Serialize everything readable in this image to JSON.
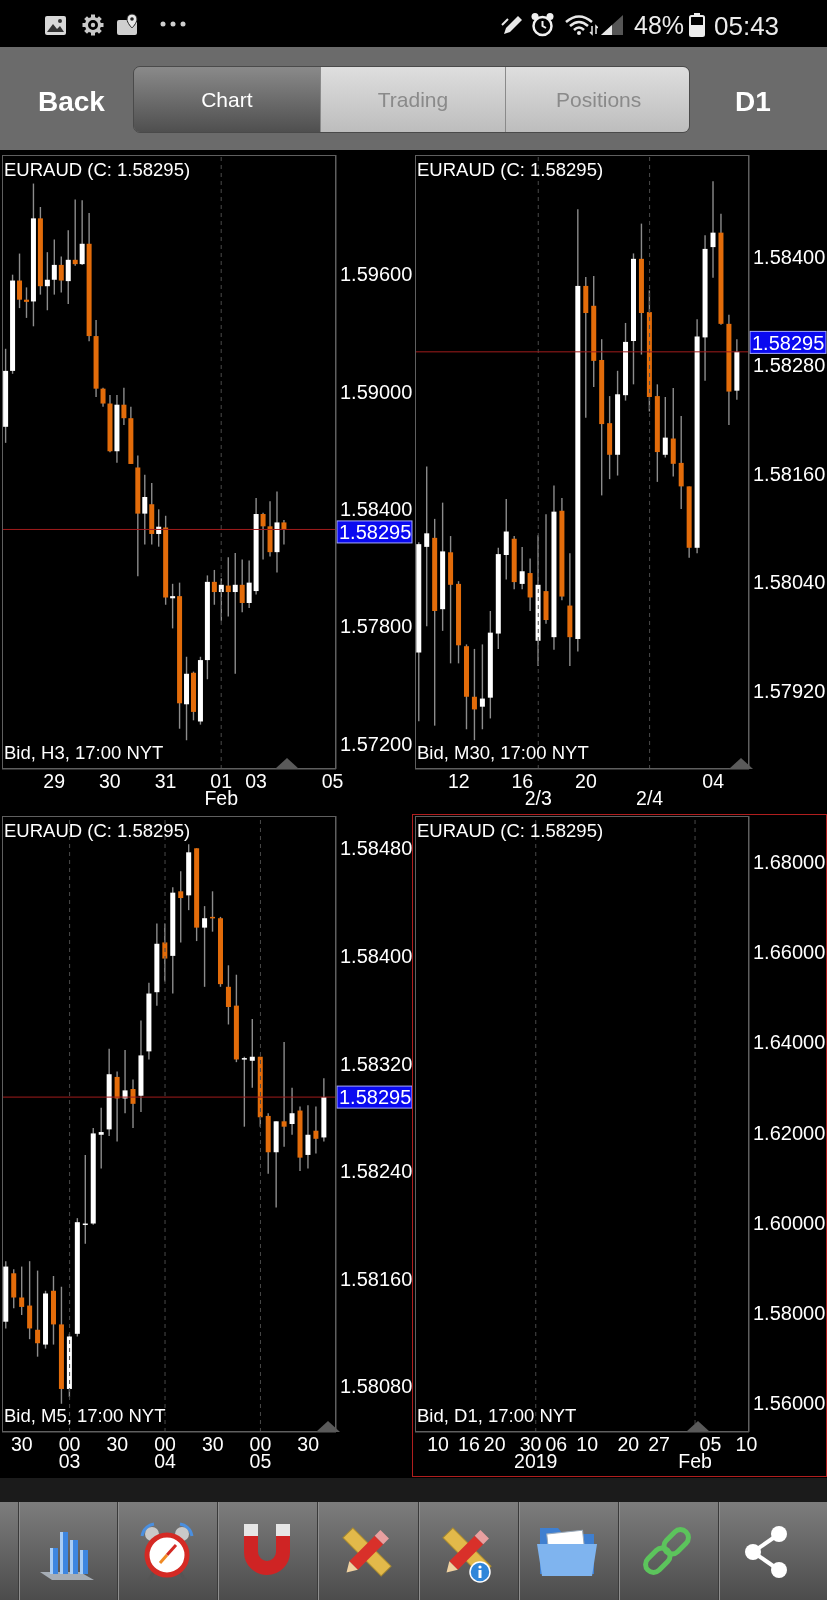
{
  "chart_data": [
    {
      "type": "other",
      "annotations": [
        "48%",
        "05:43",
        "Back",
        "Chart",
        "Trading",
        "Positions",
        "D1"
      ]
    },
    {
      "type": "candlestick",
      "title": "EURAUD (C: 1.58295)",
      "annotations": [
        "Bid, H3, 17:00 NYT"
      ],
      "grid": "x",
      "categories": [
        null,
        null,
        null,
        null,
        null,
        null,
        null,
        "29",
        null,
        null,
        null,
        null,
        null,
        null,
        null,
        "30",
        null,
        null,
        null,
        null,
        null,
        null,
        null,
        "31",
        null,
        null,
        null,
        null,
        null,
        null,
        null,
        "01\nFeb",
        null,
        null,
        null,
        null,
        "03",
        null,
        null,
        null,
        null,
        null,
        null,
        null,
        null,
        null,
        null,
        "05"
      ],
      "ohlc": [
        [
          1.5882,
          1.59219,
          1.58738,
          1.59106
        ],
        [
          1.59106,
          1.59598,
          1.59091,
          1.59568
        ],
        [
          1.59568,
          1.59706,
          1.59427,
          1.5947
        ],
        [
          1.5947,
          1.59533,
          1.59377,
          1.59459
        ],
        [
          1.59461,
          1.60064,
          1.59334,
          1.59886
        ],
        [
          1.59886,
          1.59944,
          1.59496,
          1.59539
        ],
        [
          1.59539,
          1.59713,
          1.59416,
          1.59572
        ],
        [
          1.59572,
          1.59778,
          1.59496,
          1.59648
        ],
        [
          1.59648,
          1.59691,
          1.59507,
          1.59568
        ],
        [
          1.59565,
          1.59825,
          1.59448,
          1.59674
        ],
        [
          1.59674,
          1.59983,
          1.59643,
          1.59652
        ],
        [
          1.59652,
          1.59979,
          1.59648,
          1.59756
        ],
        [
          1.59756,
          1.59914,
          1.59258,
          1.59284
        ],
        [
          1.59284,
          1.59366,
          1.58972,
          1.59015
        ],
        [
          1.59015,
          1.5902,
          1.58922,
          1.58939
        ],
        [
          1.58939,
          1.58983,
          1.5869,
          1.58695
        ],
        [
          1.58695,
          1.58983,
          1.58636,
          1.58933
        ],
        [
          1.58933,
          1.5902,
          1.58829,
          1.58864
        ],
        [
          1.58864,
          1.58922,
          1.5863,
          1.5863
        ],
        [
          1.58612,
          1.58673,
          1.58056,
          1.58376
        ],
        [
          1.58376,
          1.58575,
          1.58218,
          1.58461
        ],
        [
          1.58424,
          1.58532,
          1.58218,
          1.58272
        ],
        [
          1.58272,
          1.58398,
          1.58207,
          1.58309
        ],
        [
          1.58305,
          1.58365,
          1.5791,
          1.57947
        ],
        [
          1.57943,
          1.58017,
          1.57789,
          1.57954
        ],
        [
          1.57954,
          1.58023,
          1.57276,
          1.57406
        ],
        [
          1.57401,
          1.57644,
          1.57217,
          1.57557
        ],
        [
          1.57562,
          1.57568,
          1.57319,
          1.57362
        ],
        [
          1.57313,
          1.57644,
          1.57297,
          1.57627
        ],
        [
          1.57627,
          1.5806,
          1.57529,
          1.58027
        ],
        [
          1.58027,
          1.58088,
          1.5791,
          1.57975
        ],
        [
          1.57975,
          1.58045,
          1.57828,
          1.58012
        ],
        [
          1.58008,
          1.58153,
          1.5785,
          1.57975
        ],
        [
          1.57975,
          1.58175,
          1.57557,
          1.58012
        ],
        [
          1.58012,
          1.58142,
          1.57871,
          1.57919
        ],
        [
          1.57919,
          1.58136,
          1.57893,
          1.58023
        ],
        [
          1.5798,
          1.58456,
          1.57962,
          1.58374
        ],
        [
          1.58374,
          1.5838,
          1.58142,
          1.58311
        ],
        [
          1.58311,
          1.58439,
          1.58157,
          1.58179
        ],
        [
          1.58179,
          1.58489,
          1.58075,
          1.58331
        ],
        [
          1.58331,
          1.58344,
          1.58218,
          1.58295
        ],
        null,
        null,
        null,
        null,
        null,
        null,
        null
      ],
      "colors": [
        "#ffffff",
        "#ffffff",
        "#e36c0a",
        "#e36c0a",
        "#ffffff",
        "#e36c0a",
        "#ffffff",
        "#ffffff",
        "#e36c0a",
        "#ffffff",
        "#e36c0a",
        "#ffffff",
        "#e36c0a",
        "#e36c0a",
        "#e36c0a",
        "#e36c0a",
        "#ffffff",
        "#e36c0a",
        "#e36c0a",
        "#e36c0a",
        "#ffffff",
        "#e36c0a",
        "#ffffff",
        "#e36c0a",
        "#ffffff",
        "#e36c0a",
        "#ffffff",
        "#e36c0a",
        "#ffffff",
        "#ffffff",
        "#e36c0a",
        "#ffffff",
        "#e36c0a",
        "#ffffff",
        "#e36c0a",
        "#ffffff",
        "#ffffff",
        "#e36c0a",
        "#e36c0a",
        "#ffffff",
        "#e36c0a",
        null,
        null,
        null,
        null,
        null,
        null,
        null
      ],
      "ylim": [
        1.5707,
        1.6021
      ],
      "yticks": [
        {
          "value": 1.572,
          "label": "1.57200"
        },
        {
          "value": 1.578,
          "label": "1.57800"
        },
        {
          "value": 1.584,
          "label": "1.58400"
        },
        {
          "value": 1.59,
          "label": "1.59000"
        },
        {
          "value": 1.596,
          "label": "1.59600"
        }
      ],
      "ref_lines": [
        {
          "axis": "y",
          "value": 1.58295,
          "label": "1.58295",
          "color": "#a01c1c"
        }
      ]
    },
    {
      "type": "candlestick",
      "title": "EURAUD (C: 1.58295)",
      "annotations": [
        "Bid, M30, 17:00 NYT"
      ],
      "grid": "x",
      "categories": [
        null,
        null,
        null,
        null,
        null,
        "12",
        null,
        null,
        null,
        null,
        null,
        null,
        null,
        "16",
        null,
        "\n2/3",
        null,
        null,
        null,
        null,
        null,
        "20",
        null,
        null,
        null,
        null,
        null,
        null,
        null,
        "\n2/4",
        null,
        null,
        null,
        null,
        null,
        null,
        null,
        "04",
        null,
        null,
        null,
        null
      ],
      "ohlc": [
        [
          1.57962,
          1.58084,
          1.57886,
          1.58082
        ],
        [
          1.58079,
          1.58168,
          1.57991,
          1.58094
        ],
        [
          1.58089,
          1.5811,
          1.57881,
          1.58008
        ],
        [
          1.5801,
          1.58128,
          1.57986,
          1.58074
        ],
        [
          1.58073,
          1.58091,
          1.5795,
          1.58037
        ],
        [
          1.58038,
          1.58041,
          1.5795,
          1.5797
        ],
        [
          1.57969,
          1.57971,
          1.57877,
          1.57913
        ],
        [
          1.57913,
          1.57966,
          1.57865,
          1.57899
        ],
        [
          1.57902,
          1.57971,
          1.57877,
          1.57911
        ],
        [
          1.57912,
          1.58008,
          1.57889,
          1.57984
        ],
        [
          1.57983,
          1.58078,
          1.57966,
          1.58071
        ],
        [
          1.5807,
          1.58132,
          1.58043,
          1.58096
        ],
        [
          1.58088,
          1.58091,
          1.58032,
          1.5804
        ],
        [
          1.58038,
          1.58079,
          1.58032,
          1.58052
        ],
        [
          1.5805,
          1.58066,
          1.58008,
          1.58023
        ],
        [
          1.57975,
          1.58092,
          1.57947,
          1.58037
        ],
        [
          1.5803,
          1.58115,
          1.57994,
          1.57998
        ],
        [
          1.57979,
          1.58147,
          1.57965,
          1.58118
        ],
        [
          1.58119,
          1.58133,
          1.5802,
          1.58024
        ],
        [
          1.58014,
          1.58072,
          1.57947,
          1.57979
        ],
        [
          1.57977,
          1.58453,
          1.57963,
          1.58368
        ],
        [
          1.58368,
          1.58378,
          1.58222,
          1.58338
        ],
        [
          1.58346,
          1.58379,
          1.58256,
          1.58285
        ],
        [
          1.58286,
          1.58309,
          1.58136,
          1.58215
        ],
        [
          1.58216,
          1.58246,
          1.58154,
          1.58181
        ],
        [
          1.58181,
          1.58274,
          1.58158,
          1.58248
        ],
        [
          1.58247,
          1.58327,
          1.58241,
          1.58306
        ],
        [
          1.58307,
          1.58404,
          1.58259,
          1.58398
        ],
        [
          1.58398,
          1.58437,
          1.58292,
          1.58338
        ],
        [
          1.58339,
          1.58363,
          1.58229,
          1.58245
        ],
        [
          1.58246,
          1.58259,
          1.58151,
          1.58184
        ],
        [
          1.58181,
          1.58245,
          1.58178,
          1.582
        ],
        [
          1.58199,
          1.58255,
          1.58157,
          1.58171
        ],
        [
          1.58172,
          1.58224,
          1.58121,
          1.58146
        ],
        [
          1.58146,
          1.58146,
          1.58067,
          1.58078
        ],
        [
          1.58078,
          1.58331,
          1.58072,
          1.58312
        ],
        [
          1.58311,
          1.58424,
          1.58263,
          1.58409
        ],
        [
          1.58411,
          1.58484,
          1.58377,
          1.58427
        ],
        [
          1.58427,
          1.58448,
          1.58325,
          1.58326
        ],
        [
          1.58326,
          1.58336,
          1.58214,
          1.58251
        ],
        [
          1.58252,
          1.58309,
          1.58242,
          1.58295
        ],
        null
      ],
      "colors": [
        "#ffffff",
        "#ffffff",
        "#e36c0a",
        "#ffffff",
        "#e36c0a",
        "#e36c0a",
        "#e36c0a",
        "#e36c0a",
        "#ffffff",
        "#ffffff",
        "#ffffff",
        "#ffffff",
        "#e36c0a",
        "#ffffff",
        "#e36c0a",
        "#ffffff",
        "#e36c0a",
        "#ffffff",
        "#e36c0a",
        "#e36c0a",
        "#ffffff",
        "#e36c0a",
        "#e36c0a",
        "#e36c0a",
        "#e36c0a",
        "#ffffff",
        "#ffffff",
        "#ffffff",
        "#e36c0a",
        "#e36c0a",
        "#e36c0a",
        "#ffffff",
        "#e36c0a",
        "#e36c0a",
        "#e36c0a",
        "#ffffff",
        "#ffffff",
        "#ffffff",
        "#e36c0a",
        "#e36c0a",
        "#ffffff",
        null
      ],
      "ylim": [
        1.57833,
        1.58513
      ],
      "yticks": [
        {
          "value": 1.5792,
          "label": "1.57920"
        },
        {
          "value": 1.5804,
          "label": "1.58040"
        },
        {
          "value": 1.5816,
          "label": "1.58160"
        },
        {
          "value": 1.5828,
          "label": "1.58280"
        },
        {
          "value": 1.584,
          "label": "1.58400"
        }
      ],
      "ref_lines": [
        {
          "axis": "y",
          "value": 1.58295,
          "label": "1.58295",
          "color": "#a01c1c"
        }
      ]
    },
    {
      "type": "candlestick",
      "title": "EURAUD (C: 1.58295)",
      "annotations": [
        "Bid, M5, 17:00 NYT"
      ],
      "grid": "x",
      "categories": [
        null,
        null,
        "30",
        null,
        null,
        null,
        null,
        null,
        "00\n03",
        null,
        null,
        null,
        null,
        null,
        "30",
        null,
        null,
        null,
        null,
        null,
        "00\n04",
        null,
        null,
        null,
        null,
        null,
        "30",
        null,
        null,
        null,
        null,
        null,
        "00\n05",
        null,
        null,
        null,
        null,
        null,
        "30",
        null,
        null,
        null
      ],
      "ohlc": [
        [
          1.58128,
          1.58173,
          1.58123,
          1.58169
        ],
        [
          1.58164,
          1.58167,
          1.58138,
          1.58146
        ],
        [
          1.58146,
          1.58169,
          1.58133,
          1.58139
        ],
        [
          1.5814,
          1.58173,
          1.58115,
          1.58123
        ],
        [
          1.58122,
          1.58166,
          1.58102,
          1.58112
        ],
        [
          1.58111,
          1.58151,
          1.58108,
          1.58149
        ],
        [
          1.58151,
          1.58162,
          1.58111,
          1.58126
        ],
        [
          1.58126,
          1.58154,
          1.58067,
          1.58078
        ],
        [
          1.58078,
          1.58119,
          1.58072,
          1.58117
        ],
        [
          1.58119,
          1.58205,
          1.58117,
          1.58202
        ],
        [
          1.582,
          1.58252,
          1.58186,
          1.58201
        ],
        [
          1.58201,
          1.58272,
          1.582,
          1.58268
        ],
        [
          1.58267,
          1.58287,
          1.58242,
          1.58269
        ],
        [
          1.58271,
          1.58331,
          1.58266,
          1.58312
        ],
        [
          1.5831,
          1.58314,
          1.58262,
          1.58294
        ],
        [
          1.58294,
          1.5833,
          1.58283,
          1.583
        ],
        [
          1.58301,
          1.58308,
          1.58272,
          1.5829
        ],
        [
          1.58296,
          1.58352,
          1.58284,
          1.58326
        ],
        [
          1.58329,
          1.5838,
          1.58323,
          1.58372
        ],
        [
          1.58373,
          1.58424,
          1.58363,
          1.58409
        ],
        [
          1.5841,
          1.58424,
          1.58381,
          1.58398
        ],
        [
          1.584,
          1.58451,
          1.58372,
          1.58447
        ],
        [
          1.58448,
          1.58463,
          1.5841,
          1.58443
        ],
        [
          1.58445,
          1.58483,
          1.58434,
          1.58477
        ],
        [
          1.5848,
          1.5848,
          1.58411,
          1.58421
        ],
        [
          1.58421,
          1.58437,
          1.58377,
          1.58428
        ],
        [
          1.58429,
          1.58448,
          1.58418,
          1.58428
        ],
        [
          1.58428,
          1.58429,
          1.58377,
          1.58379
        ],
        [
          1.58377,
          1.58393,
          1.58349,
          1.58362
        ],
        [
          1.58363,
          1.58386,
          1.58321,
          1.58323
        ],
        [
          1.58323,
          1.58325,
          1.58273,
          1.58324
        ],
        [
          1.58322,
          1.58353,
          1.58302,
          1.58325
        ],
        [
          1.58325,
          1.58325,
          1.58273,
          1.5828
        ],
        [
          1.58281,
          1.58283,
          1.58238,
          1.58254
        ],
        [
          1.58254,
          1.58277,
          1.58213,
          1.58277
        ],
        [
          1.58277,
          1.58336,
          1.58258,
          1.58273
        ],
        [
          1.58275,
          1.58302,
          1.58267,
          1.58283
        ],
        [
          1.58285,
          1.58288,
          1.5824,
          1.5825
        ],
        [
          1.58252,
          1.58289,
          1.58242,
          1.58267
        ],
        [
          1.5827,
          1.58288,
          1.58253,
          1.58264
        ],
        [
          1.58265,
          1.58309,
          1.58262,
          1.58295
        ],
        null
      ],
      "colors": [
        "#ffffff",
        "#e36c0a",
        "#e36c0a",
        "#e36c0a",
        "#e36c0a",
        "#ffffff",
        "#e36c0a",
        "#e36c0a",
        "#ffffff",
        "#ffffff",
        "#ffffff",
        "#ffffff",
        "#ffffff",
        "#ffffff",
        "#e36c0a",
        "#ffffff",
        "#e36c0a",
        "#ffffff",
        "#ffffff",
        "#ffffff",
        "#e36c0a",
        "#ffffff",
        "#e36c0a",
        "#ffffff",
        "#e36c0a",
        "#ffffff",
        "#e36c0a",
        "#e36c0a",
        "#e36c0a",
        "#e36c0a",
        "#ffffff",
        "#ffffff",
        "#e36c0a",
        "#e36c0a",
        "#ffffff",
        "#e36c0a",
        "#ffffff",
        "#e36c0a",
        "#ffffff",
        "#e36c0a",
        "#ffffff",
        null
      ],
      "ylim": [
        1.58046,
        1.58504
      ],
      "yticks": [
        {
          "value": 1.5808,
          "label": "1.58080"
        },
        {
          "value": 1.5816,
          "label": "1.58160"
        },
        {
          "value": 1.5824,
          "label": "1.58240"
        },
        {
          "value": 1.5832,
          "label": "1.58320"
        },
        {
          "value": 1.584,
          "label": "1.58400"
        },
        {
          "value": 1.5848,
          "label": "1.58480"
        }
      ],
      "ref_lines": [
        {
          "axis": "y",
          "value": 1.58295,
          "label": "1.58295",
          "color": "#a01c1c"
        }
      ]
    },
    {
      "type": "candlestick",
      "title": "EURAUD (C: 1.58295)",
      "annotations": [
        "Bid, D1, 17:00 NYT"
      ],
      "grid": "x",
      "categories": [
        null,
        null,
        null,
        null,
        "10",
        null,
        null,
        null,
        null,
        null,
        "16",
        null,
        null,
        null,
        null,
        "20",
        null,
        null,
        null,
        null,
        null,
        null,
        "30",
        "\n2019",
        null,
        null,
        null,
        "06",
        null,
        null,
        null,
        null,
        null,
        "10",
        null,
        null,
        null,
        null,
        null,
        null,
        null,
        "20",
        null,
        null,
        null,
        null,
        null,
        "27",
        null,
        null,
        null,
        null,
        null,
        null,
        "\nFeb",
        null,
        null,
        "05",
        null,
        null,
        null,
        null,
        null,
        null,
        "10"
      ],
      "ohlc": [
        null,
        null,
        null,
        null,
        null,
        null,
        null,
        null,
        null,
        null,
        null,
        null,
        null,
        null,
        null,
        null,
        null,
        null,
        null,
        null,
        null,
        null,
        null,
        null,
        null,
        null,
        null,
        null,
        null,
        null,
        null,
        null,
        null,
        null,
        null,
        null,
        null,
        null,
        null,
        null,
        null,
        null,
        null,
        null,
        null,
        null,
        null,
        null,
        null,
        null,
        null,
        null,
        null,
        null,
        null,
        null,
        null,
        null,
        null,
        null,
        null,
        null,
        null,
        null,
        null
      ],
      "ylim": [
        1.5536,
        1.6902
      ],
      "yticks": [
        {
          "value": 1.56,
          "label": "1.56000"
        },
        {
          "value": 1.58,
          "label": "1.58000"
        },
        {
          "value": 1.6,
          "label": "1.60000"
        },
        {
          "value": 1.62,
          "label": "1.62000"
        },
        {
          "value": 1.64,
          "label": "1.64000"
        },
        {
          "value": 1.66,
          "label": "1.66000"
        },
        {
          "value": 1.68,
          "label": "1.68000"
        }
      ]
    }
  ]
}
